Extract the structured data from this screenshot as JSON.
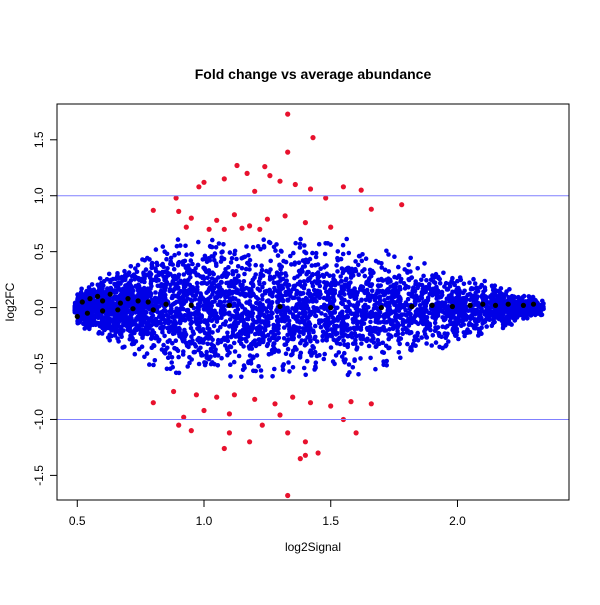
{
  "chart_data": {
    "type": "scatter",
    "title": "Fold change vs average abundance",
    "xlabel": "log2Signal",
    "ylabel": "log2FC",
    "xlim": [
      0.42,
      2.44
    ],
    "ylim": [
      -1.72,
      1.82
    ],
    "x_ticks": [
      0.5,
      1.0,
      1.5,
      2.0
    ],
    "x_tick_labels": [
      "0.5",
      "1.0",
      "1.5",
      "2.0"
    ],
    "y_ticks": [
      -1.5,
      -1.0,
      -0.5,
      0.0,
      0.5,
      1.0,
      1.5
    ],
    "y_tick_labels": [
      "-1.5",
      "-1.0",
      "-0.5",
      "0.0",
      "0.5",
      "1.0",
      "1.5"
    ],
    "grid": false,
    "legend": "none",
    "reference_lines": [
      {
        "axis": "y",
        "value": 1.0,
        "color": "#8080ff"
      },
      {
        "axis": "y",
        "value": -1.0,
        "color": "#8080ff"
      }
    ],
    "colors": {
      "significant": "#e8112d",
      "normal": "#0000e6",
      "trend": "#000000",
      "reference": "#8080ff"
    },
    "series": [
      {
        "color": "#e8112d",
        "points": [
          [
            1.33,
            1.73
          ],
          [
            1.43,
            1.52
          ],
          [
            1.33,
            1.39
          ],
          [
            1.13,
            1.27
          ],
          [
            1.24,
            1.26
          ],
          [
            1.0,
            1.12
          ],
          [
            0.98,
            1.08
          ],
          [
            1.08,
            1.15
          ],
          [
            1.17,
            1.2
          ],
          [
            1.26,
            1.18
          ],
          [
            1.3,
            1.13
          ],
          [
            1.36,
            1.1
          ],
          [
            1.42,
            1.06
          ],
          [
            1.55,
            1.08
          ],
          [
            1.62,
            1.05
          ],
          [
            1.78,
            0.92
          ],
          [
            0.89,
            0.98
          ],
          [
            1.2,
            1.04
          ],
          [
            1.48,
            0.98
          ],
          [
            1.66,
            0.88
          ],
          [
            0.8,
            0.87
          ],
          [
            0.9,
            0.86
          ],
          [
            0.95,
            0.8
          ],
          [
            1.05,
            0.78
          ],
          [
            1.12,
            0.83
          ],
          [
            1.18,
            0.73
          ],
          [
            1.25,
            0.79
          ],
          [
            1.32,
            0.82
          ],
          [
            1.4,
            0.76
          ],
          [
            1.5,
            0.72
          ],
          [
            0.93,
            0.72
          ],
          [
            1.02,
            0.7
          ],
          [
            1.08,
            0.7
          ],
          [
            1.15,
            0.71
          ],
          [
            1.22,
            0.7
          ],
          [
            0.88,
            -0.75
          ],
          [
            0.97,
            -0.78
          ],
          [
            1.05,
            -0.8
          ],
          [
            1.12,
            -0.78
          ],
          [
            1.2,
            -0.82
          ],
          [
            1.28,
            -0.86
          ],
          [
            1.35,
            -0.8
          ],
          [
            1.42,
            -0.85
          ],
          [
            1.5,
            -0.88
          ],
          [
            1.58,
            -0.84
          ],
          [
            1.66,
            -0.86
          ],
          [
            0.8,
            -0.85
          ],
          [
            1.0,
            -0.92
          ],
          [
            1.1,
            -0.95
          ],
          [
            1.3,
            -0.96
          ],
          [
            0.9,
            -1.05
          ],
          [
            0.95,
            -1.1
          ],
          [
            1.1,
            -1.12
          ],
          [
            1.18,
            -1.2
          ],
          [
            1.23,
            -1.05
          ],
          [
            1.33,
            -1.12
          ],
          [
            1.4,
            -1.2
          ],
          [
            1.45,
            -1.3
          ],
          [
            1.38,
            -1.35
          ],
          [
            1.6,
            -1.12
          ],
          [
            1.33,
            -1.68
          ],
          [
            1.4,
            -1.32
          ],
          [
            1.08,
            -1.26
          ],
          [
            0.92,
            -0.98
          ],
          [
            1.55,
            -1.0
          ]
        ]
      },
      {
        "color": "#000000",
        "points": [
          [
            0.52,
            0.05
          ],
          [
            0.55,
            0.08
          ],
          [
            0.58,
            0.1
          ],
          [
            0.6,
            0.06
          ],
          [
            0.63,
            0.12
          ],
          [
            0.67,
            0.04
          ],
          [
            0.7,
            0.08
          ],
          [
            0.74,
            0.06
          ],
          [
            0.78,
            0.05
          ],
          [
            0.85,
            0.03
          ],
          [
            0.95,
            0.02
          ],
          [
            1.1,
            0.02
          ],
          [
            1.3,
            0.01
          ],
          [
            1.5,
            0.0
          ],
          [
            1.7,
            0.0
          ],
          [
            1.82,
            0.01
          ],
          [
            1.9,
            0.02
          ],
          [
            1.98,
            0.01
          ],
          [
            2.05,
            0.02
          ],
          [
            2.1,
            0.03
          ],
          [
            2.15,
            0.02
          ],
          [
            2.2,
            0.03
          ],
          [
            2.26,
            0.02
          ],
          [
            2.3,
            0.03
          ],
          [
            0.5,
            -0.08
          ],
          [
            0.54,
            -0.05
          ],
          [
            0.6,
            -0.03
          ],
          [
            0.66,
            -0.02
          ],
          [
            0.72,
            -0.01
          ],
          [
            0.8,
            -0.02
          ]
        ]
      }
    ]
  }
}
